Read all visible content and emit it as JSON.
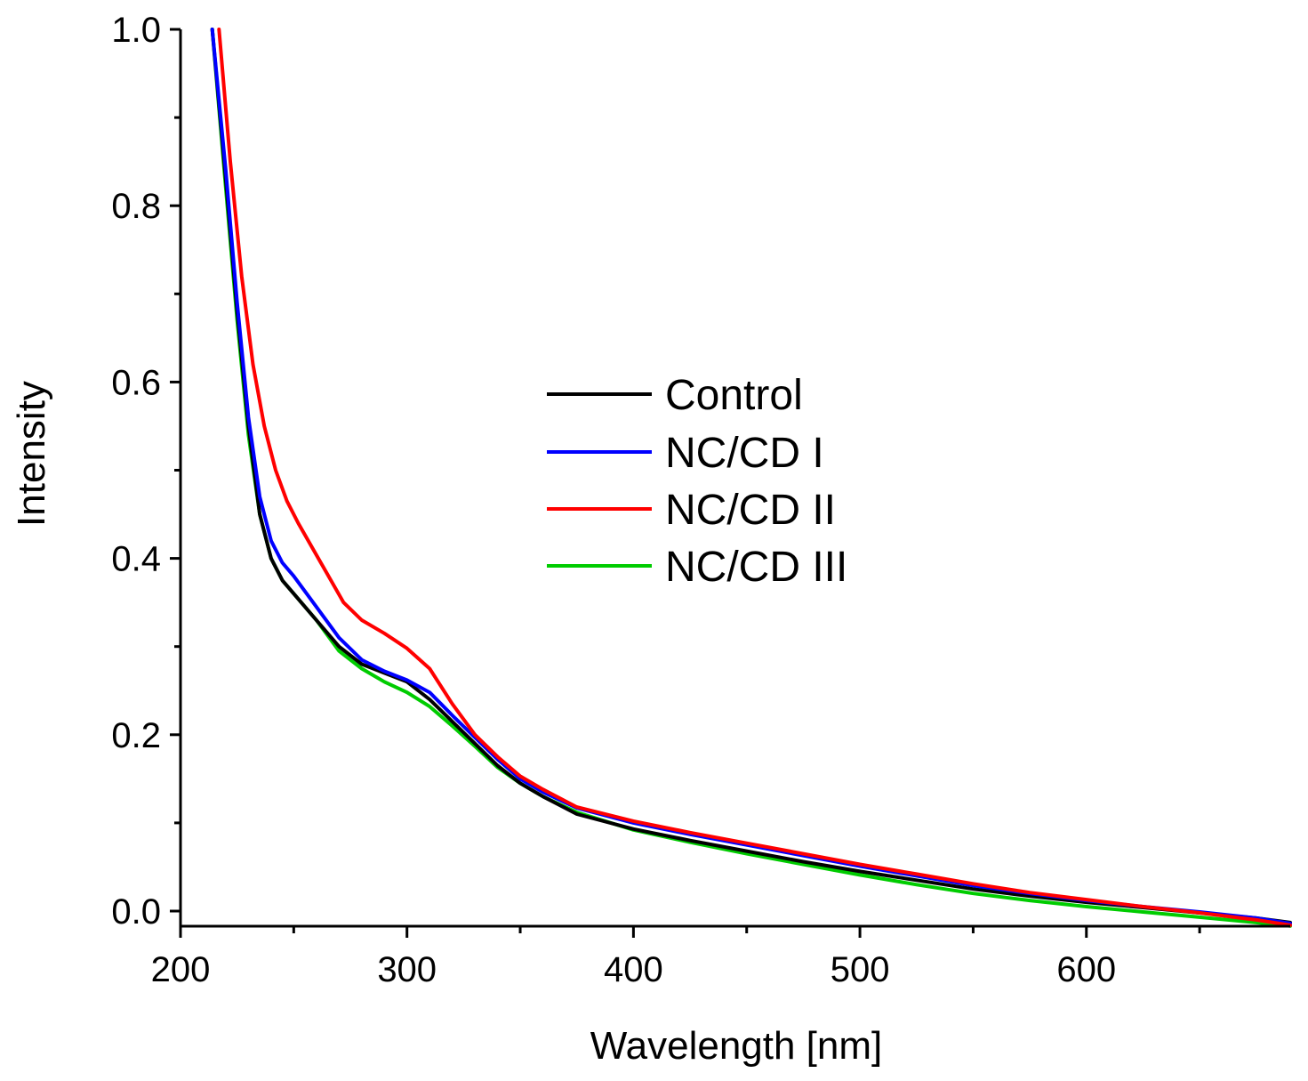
{
  "chart_data": {
    "type": "line",
    "title": "",
    "xlabel": "Wavelength [nm]",
    "ylabel": "Intensity",
    "xlim": [
      200,
      690
    ],
    "ylim": [
      -0.018,
      1.0
    ],
    "xticks": [
      200,
      300,
      400,
      500,
      600
    ],
    "xtick_labels": [
      "200",
      "300",
      "400",
      "500",
      "600"
    ],
    "yticks": [
      0.0,
      0.2,
      0.4,
      0.6,
      0.8,
      1.0
    ],
    "ytick_labels": [
      "0.0",
      "0.2",
      "0.4",
      "0.6",
      "0.8",
      "1.0"
    ],
    "legend_position": "center",
    "series": [
      {
        "name": "Control",
        "color": "#000000",
        "x": [
          214,
          220,
          225,
          230,
          235,
          240,
          245,
          250,
          260,
          270,
          280,
          290,
          300,
          310,
          320,
          330,
          340,
          350,
          360,
          375,
          400,
          425,
          450,
          475,
          500,
          525,
          550,
          575,
          600,
          625,
          650,
          675,
          690
        ],
        "y": [
          1.0,
          0.83,
          0.68,
          0.55,
          0.45,
          0.4,
          0.375,
          0.36,
          0.33,
          0.3,
          0.28,
          0.27,
          0.26,
          0.24,
          0.215,
          0.19,
          0.165,
          0.145,
          0.13,
          0.11,
          0.093,
          0.08,
          0.068,
          0.056,
          0.045,
          0.035,
          0.025,
          0.017,
          0.01,
          0.004,
          -0.002,
          -0.008,
          -0.013
        ]
      },
      {
        "name": "NC/CD I",
        "color": "#0000ff",
        "x": [
          214,
          220,
          225,
          230,
          235,
          240,
          245,
          250,
          260,
          270,
          280,
          290,
          300,
          310,
          320,
          330,
          340,
          350,
          360,
          375,
          400,
          425,
          450,
          475,
          500,
          525,
          550,
          575,
          600,
          625,
          650,
          675,
          690
        ],
        "y": [
          1.0,
          0.84,
          0.69,
          0.56,
          0.47,
          0.42,
          0.395,
          0.38,
          0.345,
          0.31,
          0.285,
          0.272,
          0.262,
          0.248,
          0.222,
          0.197,
          0.172,
          0.15,
          0.135,
          0.117,
          0.1,
          0.087,
          0.075,
          0.063,
          0.051,
          0.04,
          0.029,
          0.02,
          0.012,
          0.005,
          -0.001,
          -0.008,
          -0.014
        ]
      },
      {
        "name": "NC/CD II",
        "color": "#ff0000",
        "x": [
          217,
          222,
          227,
          232,
          237,
          242,
          247,
          252,
          262,
          272,
          280,
          290,
          300,
          310,
          320,
          330,
          340,
          350,
          360,
          375,
          400,
          425,
          450,
          475,
          500,
          525,
          550,
          575,
          600,
          625,
          650,
          675,
          690
        ],
        "y": [
          1.0,
          0.85,
          0.72,
          0.62,
          0.55,
          0.5,
          0.465,
          0.44,
          0.395,
          0.35,
          0.33,
          0.315,
          0.298,
          0.275,
          0.235,
          0.2,
          0.175,
          0.153,
          0.138,
          0.118,
          0.102,
          0.089,
          0.077,
          0.065,
          0.053,
          0.042,
          0.031,
          0.021,
          0.013,
          0.005,
          -0.002,
          -0.01,
          -0.016
        ]
      },
      {
        "name": "NC/CD III",
        "color": "#00cc00",
        "x": [
          214,
          220,
          225,
          230,
          235,
          240,
          245,
          250,
          260,
          270,
          280,
          290,
          300,
          310,
          320,
          330,
          340,
          350,
          360,
          375,
          400,
          425,
          450,
          475,
          500,
          525,
          550,
          575,
          600,
          625,
          650,
          675,
          690
        ],
        "y": [
          1.0,
          0.82,
          0.67,
          0.54,
          0.45,
          0.4,
          0.375,
          0.36,
          0.33,
          0.295,
          0.275,
          0.26,
          0.248,
          0.232,
          0.21,
          0.187,
          0.163,
          0.145,
          0.13,
          0.112,
          0.092,
          0.078,
          0.065,
          0.053,
          0.041,
          0.03,
          0.02,
          0.012,
          0.005,
          -0.001,
          -0.007,
          -0.013,
          -0.017
        ]
      }
    ]
  }
}
